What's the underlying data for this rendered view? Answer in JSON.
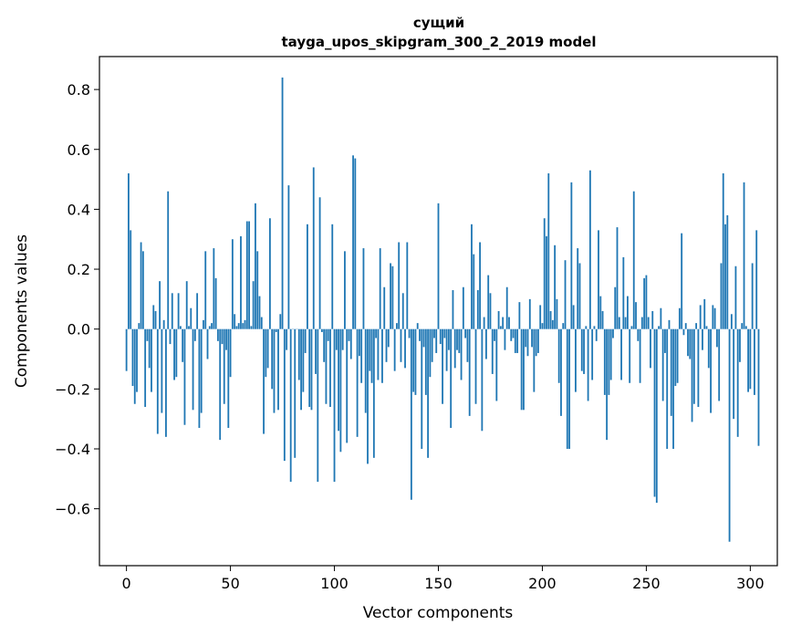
{
  "chart_data": {
    "type": "bar",
    "title": "сущий",
    "subtitle": "tayga_upos_skipgram_300_2_2019 model",
    "xlabel": "Vector components",
    "ylabel": "Components values",
    "xlim": [
      -13,
      313
    ],
    "ylim": [
      -0.79,
      0.91
    ],
    "xticks": [
      0,
      50,
      100,
      150,
      200,
      250,
      300
    ],
    "xtick_labels": [
      "0",
      "50",
      "100",
      "150",
      "200",
      "250",
      "300"
    ],
    "yticks": [
      -0.6,
      -0.4,
      -0.2,
      0.0,
      0.2,
      0.4,
      0.6,
      0.8
    ],
    "ytick_labels": [
      "−0.6",
      "−0.4",
      "−0.2",
      "0.0",
      "0.2",
      "0.4",
      "0.6",
      "0.8"
    ],
    "grid": false,
    "bar_color": "#1f77b4",
    "values": [
      -0.14,
      0.52,
      0.33,
      -0.19,
      -0.25,
      -0.21,
      0.02,
      0.29,
      0.26,
      -0.26,
      -0.04,
      -0.13,
      -0.21,
      0.08,
      0.06,
      -0.35,
      0.16,
      -0.28,
      0.03,
      -0.36,
      0.46,
      -0.05,
      0.12,
      -0.17,
      -0.16,
      0.12,
      0.01,
      -0.11,
      -0.32,
      0.16,
      0.01,
      0.07,
      -0.27,
      -0.04,
      0.12,
      -0.33,
      -0.28,
      0.03,
      0.26,
      -0.1,
      0.01,
      0.02,
      0.27,
      0.17,
      -0.04,
      -0.37,
      -0.05,
      -0.25,
      -0.07,
      -0.33,
      -0.16,
      0.3,
      0.05,
      0.01,
      0.02,
      0.31,
      0.02,
      0.03,
      0.36,
      0.36,
      0.01,
      0.16,
      0.42,
      0.26,
      0.11,
      0.04,
      -0.35,
      -0.16,
      -0.13,
      0.37,
      -0.2,
      -0.28,
      -0.01,
      -0.27,
      0.05,
      0.84,
      -0.44,
      -0.07,
      0.48,
      -0.51,
      0.0,
      -0.43,
      0.0,
      -0.17,
      -0.27,
      -0.21,
      -0.08,
      0.35,
      -0.26,
      -0.27,
      0.54,
      -0.15,
      -0.51,
      0.44,
      -0.01,
      -0.11,
      -0.25,
      -0.04,
      -0.26,
      0.35,
      -0.51,
      -0.07,
      -0.34,
      -0.41,
      -0.07,
      0.26,
      -0.38,
      -0.04,
      -0.1,
      0.58,
      0.57,
      -0.36,
      -0.09,
      -0.18,
      0.27,
      -0.28,
      -0.45,
      -0.14,
      -0.18,
      -0.43,
      -0.03,
      -0.17,
      0.27,
      -0.18,
      0.14,
      -0.11,
      -0.06,
      0.22,
      0.21,
      -0.14,
      0.02,
      0.29,
      -0.11,
      0.12,
      -0.13,
      0.29,
      -0.03,
      -0.57,
      -0.21,
      -0.22,
      0.02,
      -0.04,
      -0.4,
      -0.06,
      -0.22,
      -0.43,
      -0.16,
      -0.11,
      -0.03,
      -0.08,
      0.42,
      -0.05,
      -0.25,
      -0.03,
      -0.14,
      -0.07,
      -0.33,
      0.13,
      -0.13,
      -0.07,
      -0.08,
      -0.17,
      0.14,
      -0.03,
      -0.11,
      -0.29,
      0.35,
      0.25,
      -0.25,
      0.13,
      0.29,
      -0.34,
      0.04,
      -0.1,
      0.18,
      0.12,
      -0.15,
      -0.04,
      -0.24,
      0.06,
      0.01,
      0.04,
      -0.07,
      0.14,
      0.04,
      -0.04,
      -0.03,
      -0.08,
      -0.08,
      0.09,
      -0.27,
      -0.27,
      -0.06,
      -0.09,
      0.1,
      -0.06,
      -0.21,
      -0.09,
      -0.08,
      0.08,
      0.02,
      0.37,
      0.31,
      0.52,
      0.06,
      0.03,
      0.28,
      0.1,
      -0.18,
      -0.29,
      0.02,
      0.23,
      -0.4,
      -0.4,
      0.49,
      0.08,
      -0.21,
      0.27,
      0.22,
      -0.14,
      -0.15,
      0.01,
      -0.24,
      0.53,
      -0.17,
      0.01,
      -0.04,
      0.33,
      0.11,
      0.06,
      -0.22,
      -0.37,
      -0.22,
      -0.17,
      -0.03,
      0.14,
      0.34,
      0.04,
      -0.17,
      0.24,
      0.04,
      0.11,
      -0.18,
      0.01,
      0.46,
      0.09,
      -0.04,
      -0.18,
      0.04,
      0.17,
      0.18,
      0.04,
      -0.13,
      0.06,
      -0.56,
      -0.58,
      0.01,
      0.07,
      -0.24,
      -0.08,
      -0.4,
      0.03,
      -0.29,
      -0.4,
      -0.19,
      -0.18,
      0.07,
      0.32,
      -0.02,
      0.02,
      -0.09,
      -0.1,
      -0.31,
      -0.25,
      0.02,
      -0.26,
      0.08,
      -0.07,
      0.1,
      0.01,
      -0.13,
      -0.28,
      0.08,
      0.07,
      -0.06,
      -0.24,
      0.22,
      0.52,
      0.35,
      0.38,
      -0.71,
      0.05,
      -0.3,
      0.21,
      -0.36,
      -0.11,
      0.02,
      0.49,
      0.01,
      -0.21,
      -0.2,
      0.22,
      -0.22,
      0.33,
      -0.39
    ]
  }
}
